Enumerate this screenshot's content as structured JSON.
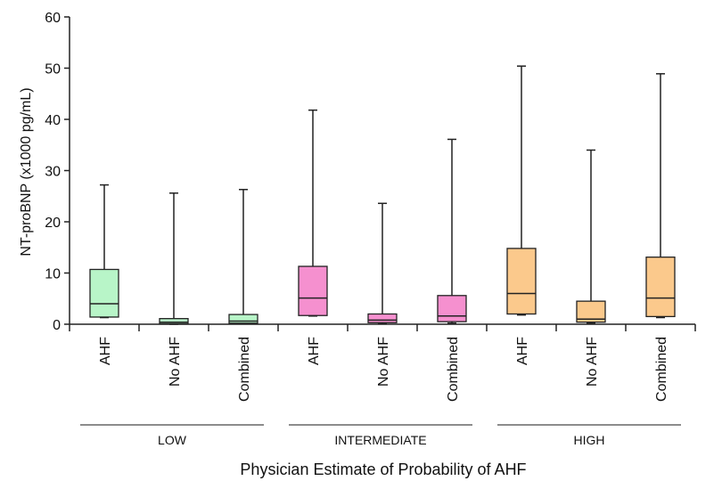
{
  "chart_data": {
    "type": "box",
    "ylabel": "NT-proBNP (x1000 pg/mL)",
    "xlabel": "Physician Estimate of Probability of AHF",
    "ylim": [
      0,
      60
    ],
    "yticks": [
      0,
      10,
      20,
      30,
      40,
      50,
      60
    ],
    "grid": false,
    "groups": [
      {
        "label": "LOW",
        "color": "#b8f5c8",
        "boxes": [
          {
            "category": "AHF",
            "min": 1.3,
            "q1": 1.4,
            "median": 4.0,
            "q3": 10.7,
            "max": 27.2
          },
          {
            "category": "No AHF",
            "min": 0.0,
            "q1": 0.1,
            "median": 0.4,
            "q3": 1.1,
            "max": 25.6
          },
          {
            "category": "Combined",
            "min": 0.1,
            "q1": 0.2,
            "median": 0.6,
            "q3": 1.9,
            "max": 26.3
          }
        ]
      },
      {
        "label": "INTERMEDIATE",
        "color": "#f590cf",
        "boxes": [
          {
            "category": "AHF",
            "min": 1.6,
            "q1": 1.7,
            "median": 5.1,
            "q3": 11.3,
            "max": 41.8
          },
          {
            "category": "No AHF",
            "min": 0.1,
            "q1": 0.3,
            "median": 0.8,
            "q3": 2.0,
            "max": 23.6
          },
          {
            "category": "Combined",
            "min": 0.2,
            "q1": 0.5,
            "median": 1.6,
            "q3": 5.6,
            "max": 36.1
          }
        ]
      },
      {
        "label": "HIGH",
        "color": "#fbc98c",
        "boxes": [
          {
            "category": "AHF",
            "min": 1.8,
            "q1": 2.0,
            "median": 6.0,
            "q3": 14.8,
            "max": 50.4
          },
          {
            "category": "No AHF",
            "min": 0.2,
            "q1": 0.4,
            "median": 1.0,
            "q3": 4.5,
            "max": 34.0
          },
          {
            "category": "Combined",
            "min": 1.3,
            "q1": 1.5,
            "median": 5.1,
            "q3": 13.1,
            "max": 48.9
          }
        ]
      }
    ]
  }
}
